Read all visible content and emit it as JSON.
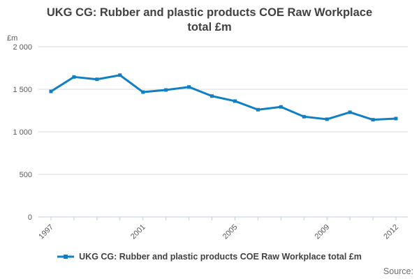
{
  "title": "UKG CG: Rubber and plastic products COE Raw Workplace total £m",
  "source_label": "Source:",
  "legend": {
    "label": "UKG CG: Rubber and plastic products COE Raw Workplace total £m",
    "marker": "line-with-square-marker"
  },
  "colors": {
    "line": "#1080c5",
    "grid": "#d9d9d9",
    "axis": "#c3cede",
    "title_text": "#414042",
    "axis_text": "#58595b",
    "source_text": "#6d6e71"
  },
  "chart_data": {
    "type": "line",
    "title": "UKG CG: Rubber and plastic products COE Raw Workplace total £m",
    "xlabel": "",
    "ylabel": "£m",
    "x": [
      1997,
      1998,
      1999,
      2000,
      2001,
      2002,
      2003,
      2004,
      2005,
      2006,
      2007,
      2008,
      2009,
      2010,
      2011,
      2012
    ],
    "labeled_x": [
      1997,
      2001,
      2005,
      2009,
      2012
    ],
    "series": [
      {
        "name": "UKG CG: Rubber and plastic products COE Raw Workplace total £m",
        "values": [
          1475,
          1645,
          1617,
          1666,
          1467,
          1492,
          1527,
          1420,
          1361,
          1260,
          1293,
          1178,
          1148,
          1230,
          1142,
          1156
        ]
      }
    ],
    "ylim": [
      0,
      2000
    ],
    "yticks": [
      0,
      500,
      1000,
      1500,
      2000
    ],
    "ytick_labels": [
      "0",
      "500",
      "1 000",
      "1 500",
      "2 000"
    ],
    "grid": true,
    "legend_position": "bottom"
  }
}
